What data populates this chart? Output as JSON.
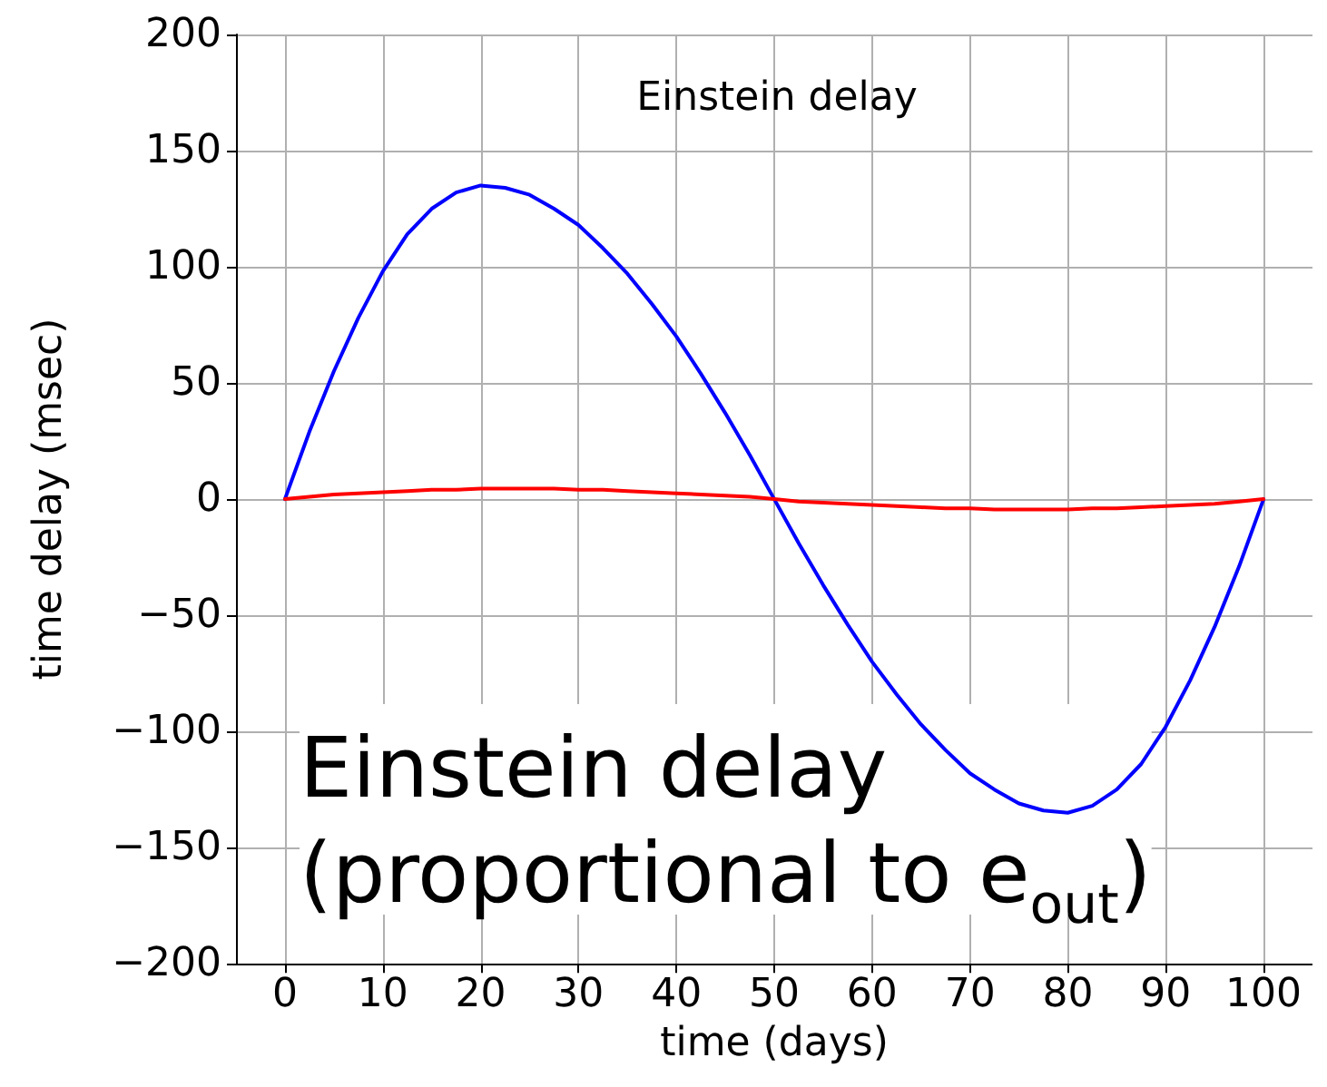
{
  "chart_data": {
    "type": "line",
    "title": "Einstein delay",
    "xlabel": "time (days)",
    "ylabel": "time delay (msec)",
    "annotations": [
      "Einstein delay\n(proportional to e$_{out}$)"
    ],
    "x": [
      0,
      2.5,
      5,
      7.5,
      10,
      12.5,
      15,
      17.5,
      20,
      22.5,
      25,
      27.5,
      30,
      32.5,
      35,
      37.5,
      40,
      42.5,
      45,
      47.5,
      50,
      52.5,
      55,
      57.5,
      60,
      62.5,
      65,
      67.5,
      70,
      72.5,
      75,
      77.5,
      80,
      82.5,
      85,
      87.5,
      90,
      92.5,
      95,
      97.5,
      100
    ],
    "series": [
      {
        "color": "#0000ff",
        "values": [
          0,
          29,
          55,
          78,
          98,
          114,
          125,
          132,
          135,
          134,
          131,
          125,
          118,
          108,
          97,
          84,
          70,
          54,
          37,
          19,
          0,
          -19,
          -37,
          -54,
          -70,
          -84,
          -97,
          -108,
          -118,
          -125,
          -131,
          -134,
          -135,
          -132,
          -125,
          -114,
          -98,
          -78,
          -55,
          -29,
          0
        ]
      },
      {
        "color": "#ff0000",
        "values": [
          0,
          1,
          2,
          2.5,
          3,
          3.5,
          4,
          4,
          4.5,
          4.5,
          4.5,
          4.5,
          4,
          4,
          3.5,
          3,
          2.5,
          2,
          1.5,
          1,
          0,
          -1,
          -1.5,
          -2,
          -2.5,
          -3,
          -3.5,
          -4,
          -4,
          -4.5,
          -4.5,
          -4.5,
          -4.5,
          -4,
          -4,
          -3.5,
          -3,
          -2.5,
          -2,
          -1,
          0
        ]
      }
    ],
    "xlim": [
      -5,
      105
    ],
    "ylim": [
      -200,
      200
    ],
    "xticks": [
      0,
      10,
      20,
      30,
      40,
      50,
      60,
      70,
      80,
      90,
      100
    ],
    "yticks": [
      -200,
      -150,
      -100,
      -50,
      0,
      50,
      100,
      150,
      200
    ],
    "grid": true,
    "marker": "none",
    "line_style": "solid"
  }
}
